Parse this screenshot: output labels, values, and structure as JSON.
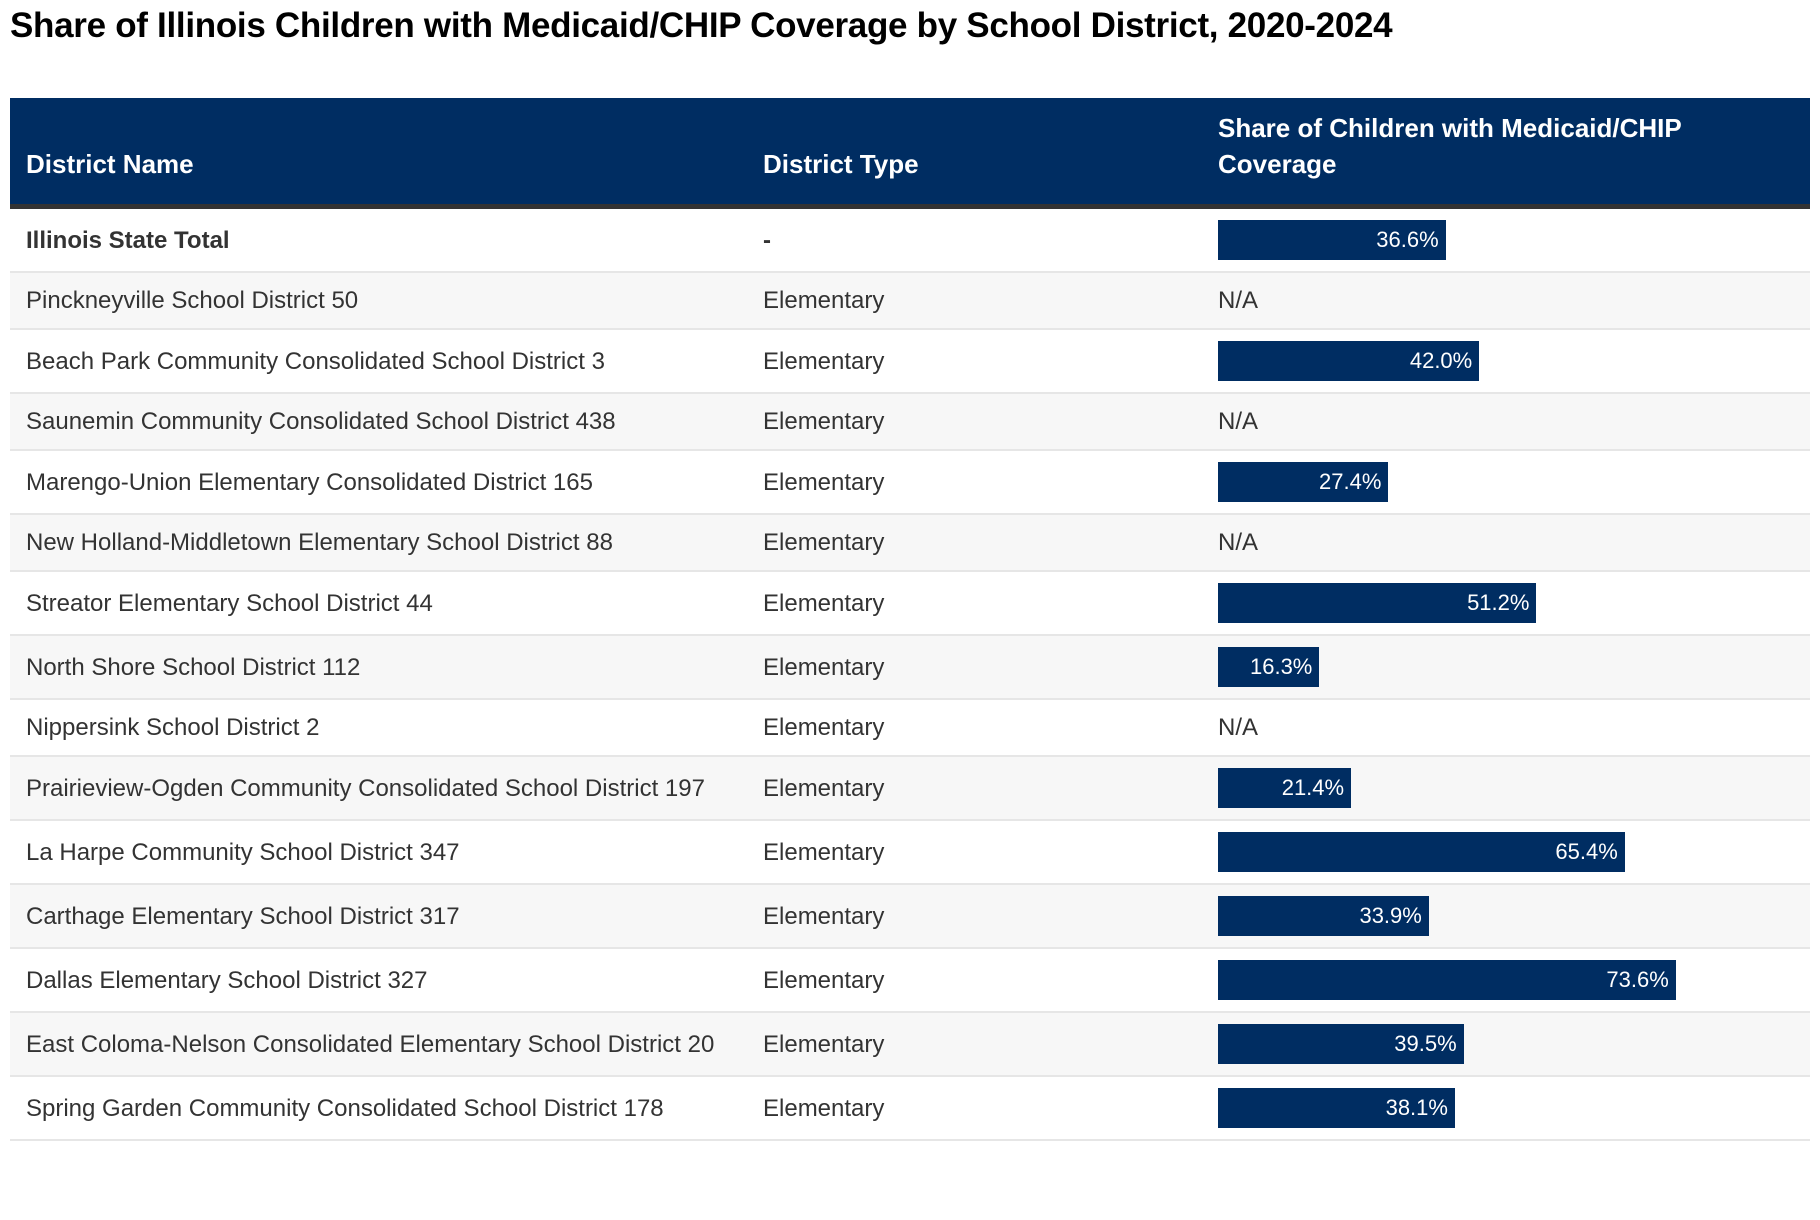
{
  "title": "Share of Illinois Children with Medicaid/CHIP Coverage by School District, 2020-2024",
  "colors": {
    "header_bg": "#002d62",
    "bar": "#002d62",
    "stripe": "#f7f7f7"
  },
  "columns": [
    "District Name",
    "District Type",
    "Share of Children with Medicaid/CHIP Coverage"
  ],
  "rows": [
    {
      "name": "Illinois State Total",
      "type": "-",
      "share": 36.6,
      "label": "36.6%"
    },
    {
      "name": "Pinckneyville School District 50",
      "type": "Elementary",
      "share": null,
      "label": "N/A"
    },
    {
      "name": "Beach Park Community Consolidated School District 3",
      "type": "Elementary",
      "share": 42.0,
      "label": "42.0%"
    },
    {
      "name": "Saunemin Community Consolidated School District 438",
      "type": "Elementary",
      "share": null,
      "label": "N/A"
    },
    {
      "name": "Marengo-Union Elementary Consolidated District 165",
      "type": "Elementary",
      "share": 27.4,
      "label": "27.4%"
    },
    {
      "name": "New Holland-Middletown Elementary School District 88",
      "type": "Elementary",
      "share": null,
      "label": "N/A"
    },
    {
      "name": "Streator Elementary School District 44",
      "type": "Elementary",
      "share": 51.2,
      "label": "51.2%"
    },
    {
      "name": "North Shore School District 112",
      "type": "Elementary",
      "share": 16.3,
      "label": "16.3%"
    },
    {
      "name": "Nippersink School District 2",
      "type": "Elementary",
      "share": null,
      "label": "N/A"
    },
    {
      "name": "Prairieview-Ogden Community Consolidated School District 197",
      "type": "Elementary",
      "share": 21.4,
      "label": "21.4%"
    },
    {
      "name": "La Harpe Community School District 347",
      "type": "Elementary",
      "share": 65.4,
      "label": "65.4%"
    },
    {
      "name": "Carthage Elementary School District 317",
      "type": "Elementary",
      "share": 33.9,
      "label": "33.9%"
    },
    {
      "name": "Dallas Elementary School District 327",
      "type": "Elementary",
      "share": 73.6,
      "label": "73.6%"
    },
    {
      "name": "East Coloma-Nelson Consolidated Elementary School District 20",
      "type": "Elementary",
      "share": 39.5,
      "label": "39.5%"
    },
    {
      "name": "Spring Garden Community Consolidated School District 178",
      "type": "Elementary",
      "share": 38.1,
      "label": "38.1%"
    }
  ]
}
